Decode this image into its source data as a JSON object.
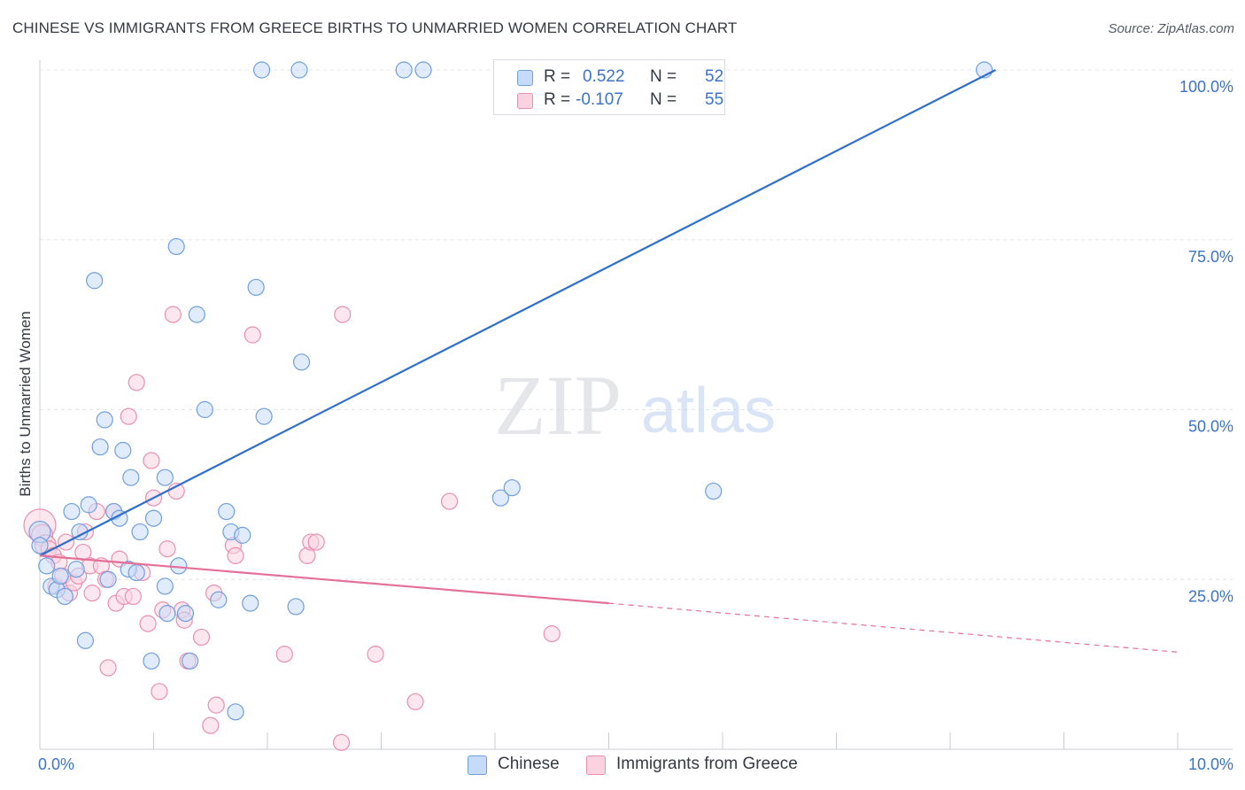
{
  "title": "CHINESE VS IMMIGRANTS FROM GREECE BIRTHS TO UNMARRIED WOMEN CORRELATION CHART",
  "source": "Source: ZipAtlas.com",
  "watermark": {
    "zip": "ZIP",
    "atlas": "atlas"
  },
  "colors": {
    "blue_fill": "#c6dafa",
    "blue_stroke": "#6f9fe0",
    "blue_line": "#2f6fcc",
    "pink_fill": "#fbd3e0",
    "pink_stroke": "#ea8fae",
    "pink_line": "#e4709a",
    "axis_text": "#3b73c8",
    "grid": "#e1e4e8"
  },
  "legend": {
    "r_label": "R =",
    "n_label": "N =",
    "series": [
      {
        "r": "0.522",
        "n": "52"
      },
      {
        "r": "-0.107",
        "n": "55"
      }
    ]
  },
  "chart_data": {
    "type": "scatter",
    "title": "CHINESE VS IMMIGRANTS FROM GREECE BIRTHS TO UNMARRIED WOMEN CORRELATION CHART",
    "xlabel": "",
    "ylabel": "Births to Unmarried Women",
    "xlim": [
      0,
      10
    ],
    "ylim": [
      0,
      100
    ],
    "x_tick_labels": [
      {
        "value": 0,
        "label": "0.0%"
      },
      {
        "value": 10,
        "label": "10.0%"
      }
    ],
    "y_tick_labels": [
      {
        "value": 100,
        "label": "100.0%"
      },
      {
        "value": 75,
        "label": "75.0%"
      },
      {
        "value": 50,
        "label": "50.0%"
      },
      {
        "value": 25,
        "label": "25.0%"
      }
    ],
    "legend_position": "bottom-center",
    "series": [
      {
        "name": "Chinese",
        "trend": {
          "x0": 0.0,
          "y0": 28.5,
          "x1": 8.4,
          "y1": 100.0
        },
        "points": [
          [
            0.0,
            32.0,
            12
          ],
          [
            0.0,
            30.0,
            9
          ],
          [
            0.06,
            27.0,
            9
          ],
          [
            0.1,
            24.0,
            9
          ],
          [
            0.15,
            23.5,
            9
          ],
          [
            0.18,
            25.5,
            9
          ],
          [
            0.22,
            22.5,
            9
          ],
          [
            0.28,
            35.0,
            9
          ],
          [
            0.32,
            26.5,
            9
          ],
          [
            0.35,
            32.0,
            9
          ],
          [
            0.4,
            16.0,
            9
          ],
          [
            0.43,
            36.0,
            9
          ],
          [
            0.48,
            69.0,
            9
          ],
          [
            0.53,
            44.5,
            9
          ],
          [
            0.57,
            48.5,
            9
          ],
          [
            0.6,
            25.0,
            9
          ],
          [
            0.65,
            35.0,
            9
          ],
          [
            0.7,
            34.0,
            9
          ],
          [
            0.73,
            44.0,
            9
          ],
          [
            0.78,
            26.5,
            9
          ],
          [
            0.8,
            40.0,
            9
          ],
          [
            0.85,
            26.0,
            9
          ],
          [
            0.88,
            32.0,
            9
          ],
          [
            0.98,
            13.0,
            9
          ],
          [
            1.0,
            34.0,
            9
          ],
          [
            1.1,
            24.0,
            9
          ],
          [
            1.1,
            40.0,
            9
          ],
          [
            1.12,
            20.0,
            9
          ],
          [
            1.2,
            74.0,
            9
          ],
          [
            1.22,
            27.0,
            9
          ],
          [
            1.28,
            20.0,
            9
          ],
          [
            1.32,
            13.0,
            9
          ],
          [
            1.38,
            64.0,
            9
          ],
          [
            1.45,
            50.0,
            9
          ],
          [
            1.57,
            22.0,
            9
          ],
          [
            1.64,
            35.0,
            9
          ],
          [
            1.68,
            32.0,
            9
          ],
          [
            1.72,
            5.5,
            9
          ],
          [
            1.78,
            31.5,
            9
          ],
          [
            1.85,
            21.5,
            9
          ],
          [
            1.9,
            68.0,
            9
          ],
          [
            1.95,
            100.0,
            9
          ],
          [
            1.97,
            49.0,
            9
          ],
          [
            2.25,
            21.0,
            9
          ],
          [
            2.28,
            100.0,
            9
          ],
          [
            2.3,
            57.0,
            9
          ],
          [
            3.2,
            100.0,
            9
          ],
          [
            3.37,
            100.0,
            9
          ],
          [
            4.05,
            37.0,
            9
          ],
          [
            4.15,
            38.5,
            9
          ],
          [
            4.5,
            100.0,
            9
          ],
          [
            5.92,
            38.0,
            9
          ],
          [
            8.3,
            100.0,
            9
          ]
        ]
      },
      {
        "name": "Immigrants from Greece",
        "trend": {
          "x0": 0.0,
          "y0": 28.5,
          "x1": 5.0,
          "y1": 21.5
        },
        "trend_dashed": {
          "x0": 5.0,
          "y0": 21.5,
          "x1": 10.0,
          "y1": 14.3
        },
        "points": [
          [
            0.0,
            33.0,
            18
          ],
          [
            0.02,
            31.5,
            12
          ],
          [
            0.05,
            30.0,
            12
          ],
          [
            0.08,
            29.5,
            9
          ],
          [
            0.12,
            28.5,
            9
          ],
          [
            0.14,
            24.0,
            9
          ],
          [
            0.17,
            27.5,
            9
          ],
          [
            0.2,
            25.5,
            9
          ],
          [
            0.23,
            30.5,
            9
          ],
          [
            0.26,
            23.0,
            9
          ],
          [
            0.3,
            24.5,
            9
          ],
          [
            0.34,
            25.5,
            9
          ],
          [
            0.38,
            29.0,
            9
          ],
          [
            0.4,
            32.0,
            9
          ],
          [
            0.44,
            27.0,
            9
          ],
          [
            0.46,
            23.0,
            9
          ],
          [
            0.5,
            35.0,
            9
          ],
          [
            0.54,
            27.0,
            9
          ],
          [
            0.58,
            25.0,
            9
          ],
          [
            0.6,
            12.0,
            9
          ],
          [
            0.65,
            35.0,
            9
          ],
          [
            0.67,
            21.5,
            9
          ],
          [
            0.7,
            28.0,
            9
          ],
          [
            0.74,
            22.5,
            9
          ],
          [
            0.78,
            49.0,
            9
          ],
          [
            0.82,
            22.5,
            9
          ],
          [
            0.85,
            54.0,
            9
          ],
          [
            0.9,
            26.0,
            9
          ],
          [
            0.95,
            18.5,
            9
          ],
          [
            0.98,
            42.5,
            9
          ],
          [
            1.0,
            37.0,
            9
          ],
          [
            1.05,
            8.5,
            9
          ],
          [
            1.08,
            20.5,
            9
          ],
          [
            1.12,
            29.5,
            9
          ],
          [
            1.17,
            64.0,
            9
          ],
          [
            1.2,
            38.0,
            9
          ],
          [
            1.25,
            20.5,
            9
          ],
          [
            1.27,
            19.0,
            9
          ],
          [
            1.3,
            13.0,
            9
          ],
          [
            1.42,
            16.5,
            9
          ],
          [
            1.5,
            3.5,
            9
          ],
          [
            1.53,
            23.0,
            9
          ],
          [
            1.55,
            6.5,
            9
          ],
          [
            1.7,
            30.0,
            9
          ],
          [
            1.72,
            28.5,
            9
          ],
          [
            1.87,
            61.0,
            9
          ],
          [
            2.15,
            14.0,
            9
          ],
          [
            2.35,
            28.5,
            9
          ],
          [
            2.38,
            30.5,
            9
          ],
          [
            2.43,
            30.5,
            9
          ],
          [
            2.65,
            1.0,
            9
          ],
          [
            2.66,
            64.0,
            9
          ],
          [
            2.95,
            14.0,
            9
          ],
          [
            3.3,
            7.0,
            9
          ],
          [
            3.6,
            36.5,
            9
          ],
          [
            4.5,
            17.0,
            9
          ]
        ]
      }
    ]
  }
}
